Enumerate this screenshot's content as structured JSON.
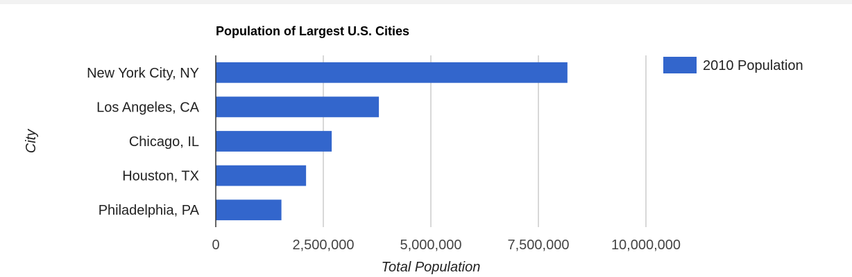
{
  "chart_data": {
    "type": "bar",
    "orientation": "horizontal",
    "title": "Population of Largest U.S. Cities",
    "xlabel": "Total Population",
    "ylabel": "City",
    "categories": [
      "New York City, NY",
      "Los Angeles, CA",
      "Chicago, IL",
      "Houston, TX",
      "Philadelphia, PA"
    ],
    "series": [
      {
        "name": "2010 Population",
        "color": "#3366cc",
        "values": [
          8175000,
          3792000,
          2695000,
          2099000,
          1526000
        ]
      }
    ],
    "xlim": [
      0,
      10000000
    ],
    "xticks": [
      0,
      2500000,
      5000000,
      7500000,
      10000000
    ],
    "xtick_labels": [
      "0",
      "2,500,000",
      "5,000,000",
      "7,500,000",
      "10,000,000"
    ],
    "grid": true,
    "legend_position": "right"
  }
}
